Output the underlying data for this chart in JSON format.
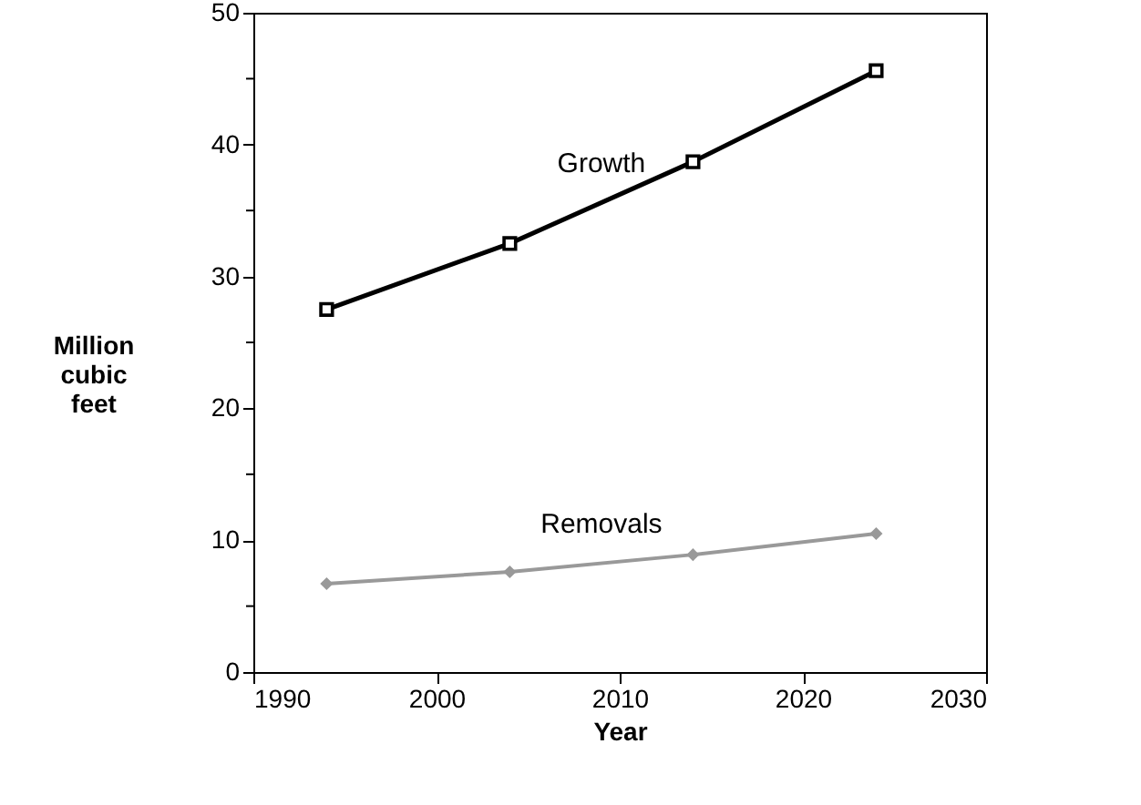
{
  "chart_data": {
    "type": "line",
    "xlabel": "Year",
    "ylabel": "Million cubic feet",
    "x": [
      1994,
      2004,
      2014,
      2024
    ],
    "series": [
      {
        "name": "Growth",
        "color": "#000000",
        "marker": "square",
        "values": [
          27.5,
          32.5,
          38.7,
          45.6
        ]
      },
      {
        "name": "Removals",
        "color": "#999999",
        "marker": "diamond",
        "values": [
          6.7,
          7.6,
          8.9,
          10.5
        ]
      }
    ],
    "xlim": [
      1990,
      2030
    ],
    "xticks": [
      1990,
      2000,
      2010,
      2020,
      2030
    ],
    "ylim": [
      0,
      50
    ],
    "yticks": [
      0,
      {
        "value": 5,
        "label": null
      },
      10,
      {
        "value": 15,
        "label": null
      },
      20,
      {
        "value": 25,
        "label": null
      },
      30,
      {
        "value": 35,
        "label": null
      },
      40,
      {
        "value": 45,
        "label": null
      },
      50
    ],
    "grid": false,
    "legend": false,
    "line_style": "solid"
  }
}
